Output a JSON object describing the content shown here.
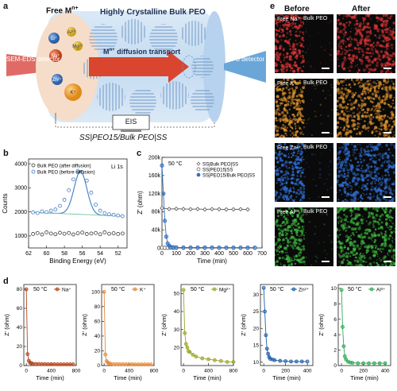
{
  "panels": {
    "a": "a",
    "b": "b",
    "c": "c",
    "d": "d",
    "e": "e"
  },
  "panel_a": {
    "free_label": "Free M",
    "free_sup": "n+",
    "crystal_label": "Highly Crystalline Bulk PEO",
    "diffusion_label": "M",
    "diffusion_sup": "n+",
    "diffusion_rest": " diffusion transport",
    "sem_label": "SEM-EDS detector",
    "xps_label": "XPS detector",
    "eis_label": "EIS",
    "cell_label": "SS|PEO15/Bulk PEO|SS",
    "ions": [
      "Li+",
      "Al3+",
      "Mg2+",
      "Na+",
      "Zn2+",
      "K+"
    ],
    "colors": {
      "background": "#cfe1f3",
      "crystal": "#a9c6e6",
      "sem": "#d9534f",
      "xps": "#4a90c8",
      "arrow": "#d9452e"
    }
  },
  "panel_e": {
    "before": "Before",
    "after": "After",
    "bulk": "Bulk PEO",
    "rows": [
      {
        "free": "Free Na⁺",
        "color": "#d93333"
      },
      {
        "free": "Free K⁺",
        "color": "#e0922a"
      },
      {
        "free": "Free Zn²⁺",
        "color": "#2f6fd6"
      },
      {
        "free": "Free Al³⁺",
        "color": "#3cb83c"
      }
    ]
  },
  "chart_data": [
    {
      "id": "b",
      "type": "scatter",
      "xlabel": "Binding Energy (eV)",
      "ylabel": "Counts",
      "annotation": "Li 1s",
      "x_reversed": true,
      "xlim": [
        62,
        51
      ],
      "ylim": [
        500,
        4200
      ],
      "xticks": [
        62,
        60,
        58,
        56,
        54,
        52
      ],
      "yticks": [
        1000,
        2000,
        3000,
        4000
      ],
      "series": [
        {
          "name": "Bulk PEO (after diffusion)",
          "color": "#3a3a3a",
          "x": [
            61.5,
            61.0,
            60.5,
            60.0,
            59.5,
            59.0,
            58.5,
            58.0,
            57.5,
            57.0,
            56.5,
            56.0,
            55.5,
            55.0,
            54.5,
            54.0,
            53.5,
            53.0,
            52.5,
            52.0,
            51.5
          ],
          "y": [
            1080,
            1120,
            1060,
            1150,
            1100,
            1070,
            1130,
            1090,
            1120,
            1060,
            1110,
            1140,
            1080,
            1100,
            1120,
            1070,
            1150,
            1090,
            1110,
            1080,
            1100
          ]
        },
        {
          "name": "Bulk PEO (before diffusion)",
          "color": "#3e7cc0",
          "x": [
            61.5,
            61.0,
            60.5,
            60.0,
            59.5,
            59.0,
            58.5,
            58.0,
            57.5,
            57.0,
            56.5,
            56.0,
            55.5,
            55.0,
            54.5,
            54.0,
            53.5,
            53.0,
            52.5,
            52.0,
            51.5
          ],
          "y": [
            1980,
            1950,
            2020,
            1990,
            2050,
            2100,
            2250,
            2500,
            2900,
            3350,
            3700,
            3650,
            3300,
            2800,
            2300,
            2050,
            1950,
            1900,
            1880,
            1850,
            1820
          ]
        }
      ]
    },
    {
      "id": "c",
      "type": "line",
      "xlabel": "Time (min)",
      "ylabel": "Z' (ohm)",
      "annotation": "50 °C",
      "xlim": [
        0,
        700
      ],
      "ylim": [
        0,
        200000
      ],
      "xticks": [
        0,
        100,
        200,
        300,
        400,
        500,
        600,
        700
      ],
      "yticks": [
        0,
        40000,
        80000,
        120000,
        160000,
        200000
      ],
      "ytick_labels": [
        "0",
        "40k",
        "80k",
        "120k",
        "160k",
        "200k"
      ],
      "series": [
        {
          "name": "SS|Bulk PEO|SS",
          "marker": "diamond",
          "color": "#555555",
          "x": [
            0,
            50,
            100,
            150,
            200,
            250,
            300,
            350,
            400,
            450,
            500,
            550,
            600
          ],
          "y": [
            88000,
            86000,
            86500,
            86000,
            85500,
            86000,
            85000,
            85800,
            85500,
            85000,
            85200,
            85500,
            85000
          ]
        },
        {
          "name": "SS|PEO15|SS",
          "marker": "circle-open",
          "color": "#555555",
          "x": [
            0,
            20,
            40,
            60,
            80,
            100,
            150,
            200,
            250,
            300,
            350,
            400,
            450,
            500,
            550,
            600,
            650
          ],
          "y": [
            500,
            400,
            450,
            400,
            380,
            420,
            400,
            410,
            380,
            400,
            390,
            400,
            410,
            400,
            390,
            400,
            400
          ]
        },
        {
          "name": "SS|PEO15/Bulk PEO|SS",
          "marker": "circle",
          "color": "#2f6fbf",
          "x": [
            0,
            10,
            20,
            30,
            40,
            50,
            60,
            80,
            100,
            150,
            200,
            250,
            300,
            350,
            400,
            450,
            500,
            550,
            600,
            650
          ],
          "y": [
            182000,
            120000,
            60000,
            25000,
            10000,
            5000,
            2500,
            1500,
            1200,
            1000,
            900,
            900,
            850,
            850,
            800,
            800,
            800,
            800,
            800,
            800
          ]
        }
      ]
    },
    {
      "id": "d1",
      "type": "line",
      "annotation": "50 °C",
      "legend": "Na⁺",
      "color": "#b5451b",
      "xlabel": "Time (min)",
      "ylabel": "Z' (ohm)",
      "xlim": [
        -40,
        800
      ],
      "ylim": [
        0,
        85
      ],
      "xticks": [
        0,
        400,
        800
      ],
      "yticks": [
        0,
        20,
        40,
        60,
        80
      ],
      "x": [
        0,
        20,
        40,
        60,
        80,
        100,
        150,
        200,
        250,
        300,
        350,
        400,
        450,
        500,
        550,
        600,
        650,
        700,
        750
      ],
      "y": [
        80,
        12,
        5,
        3,
        2.5,
        2,
        1.8,
        1.6,
        1.5,
        1.5,
        1.4,
        1.4,
        1.4,
        1.3,
        1.3,
        1.3,
        1.3,
        1.3,
        1.3
      ]
    },
    {
      "id": "d2",
      "type": "line",
      "annotation": "50 °C",
      "legend": "K⁺",
      "color": "#e58a3a",
      "xlabel": "Time (min)",
      "ylabel": "Z' (ohm)",
      "xlim": [
        -40,
        800
      ],
      "ylim": [
        0,
        110
      ],
      "xticks": [
        0,
        400,
        800
      ],
      "yticks": [
        0,
        20,
        40,
        60,
        80,
        100
      ],
      "x": [
        0,
        20,
        40,
        60,
        80,
        100,
        150,
        200,
        250,
        300,
        350,
        400,
        450,
        500,
        550,
        600,
        650,
        700,
        750
      ],
      "y": [
        100,
        15,
        6,
        4,
        3,
        2.5,
        2,
        2,
        1.8,
        1.8,
        1.7,
        1.7,
        1.7,
        1.6,
        1.6,
        1.6,
        1.6,
        1.6,
        1.6
      ]
    },
    {
      "id": "d3",
      "type": "line",
      "annotation": "50 °C",
      "legend": "Mg²⁺",
      "color": "#9aa628",
      "xlabel": "Time (min)",
      "ylabel": "Z' (ohm)",
      "xlim": [
        -40,
        800
      ],
      "ylim": [
        10,
        55
      ],
      "xticks": [
        0,
        400,
        800
      ],
      "yticks": [
        20,
        30,
        40,
        50
      ],
      "x": [
        0,
        20,
        40,
        60,
        80,
        100,
        150,
        200,
        300,
        400,
        500,
        600,
        700,
        800
      ],
      "y": [
        52,
        28,
        22,
        20,
        18,
        17.5,
        16,
        15,
        14,
        13.5,
        13,
        12.5,
        12,
        12
      ]
    },
    {
      "id": "d4",
      "type": "line",
      "annotation": "50 °C",
      "legend": "Zn²⁺",
      "color": "#1f5fa8",
      "xlabel": "Time (min)",
      "ylabel": "Z' (ohm)",
      "xlim": [
        -30,
        450
      ],
      "ylim": [
        9,
        33
      ],
      "xticks": [
        0,
        200,
        400
      ],
      "yticks": [
        10,
        15,
        20,
        25,
        30
      ],
      "x": [
        0,
        10,
        20,
        30,
        40,
        50,
        60,
        80,
        100,
        150,
        200,
        250,
        300,
        350,
        400
      ],
      "y": [
        32,
        25,
        18,
        14,
        12.5,
        11.5,
        11,
        10.8,
        10.6,
        10.4,
        10.3,
        10.2,
        10.2,
        10.2,
        10.2
      ]
    },
    {
      "id": "d5",
      "type": "line",
      "annotation": "50 °C",
      "legend": "Al³⁺",
      "color": "#2eaa55",
      "xlabel": "Time (min)",
      "ylabel": "Z' (ohm)",
      "xlim": [
        -30,
        450
      ],
      "ylim": [
        0,
        10.5
      ],
      "xticks": [
        0,
        200,
        400
      ],
      "yticks": [
        0,
        2,
        4,
        6,
        8,
        10
      ],
      "x": [
        0,
        10,
        20,
        30,
        40,
        60,
        80,
        100,
        150,
        200,
        250,
        300,
        350,
        400
      ],
      "y": [
        9.8,
        5,
        2.5,
        1.2,
        0.8,
        0.5,
        0.4,
        0.35,
        0.3,
        0.3,
        0.3,
        0.3,
        0.3,
        0.3
      ]
    }
  ]
}
